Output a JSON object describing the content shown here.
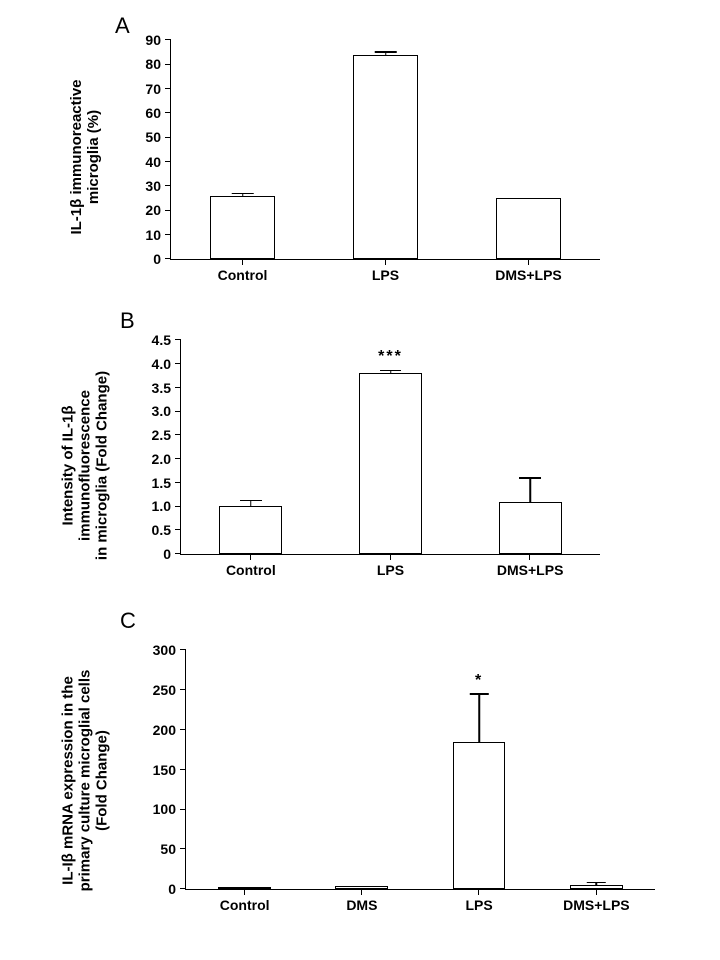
{
  "panelA": {
    "label": "A",
    "type": "bar",
    "y_label_line1": "IL-1β immunoreactive",
    "y_label_line2": "microglia (%)",
    "ylim": [
      0,
      90
    ],
    "ytick_step": 10,
    "categories": [
      "Control",
      "LPS",
      "DMS+LPS"
    ],
    "values": [
      26,
      84,
      25
    ],
    "errors": [
      1,
      1,
      0
    ],
    "bar_color": "#ffffff",
    "border_color": "#000000",
    "label_fontsize": 15,
    "tick_fontsize": 14
  },
  "panelB": {
    "label": "B",
    "type": "bar",
    "y_label_line1": "Intensity of IL-1β",
    "y_label_line2": "immunofluorescence",
    "y_label_line3": "in microglia (Fold Change)",
    "ylim": [
      0,
      4.5
    ],
    "ytick_step": 0.5,
    "categories": [
      "Control",
      "LPS",
      "DMS+LPS"
    ],
    "values": [
      1.0,
      3.8,
      1.1
    ],
    "errors": [
      0.12,
      0.06,
      0.5
    ],
    "significance": [
      null,
      "***",
      null
    ],
    "bar_color": "#ffffff",
    "border_color": "#000000"
  },
  "panelC": {
    "label": "C",
    "type": "bar",
    "y_label_line1": "IL-Iβ mRNA expression in the",
    "y_label_line2": "primary culture microglial cells",
    "y_label_line3": "(Fold Change)",
    "ylim": [
      0,
      300
    ],
    "ytick_step": 50,
    "categories": [
      "Control",
      "DMS",
      "LPS",
      "DMS+LPS"
    ],
    "values": [
      3,
      4,
      185,
      5
    ],
    "errors": [
      0,
      0,
      60,
      3
    ],
    "significance": [
      null,
      null,
      "*",
      null
    ],
    "bar_color": "#ffffff",
    "border_color": "#000000"
  }
}
